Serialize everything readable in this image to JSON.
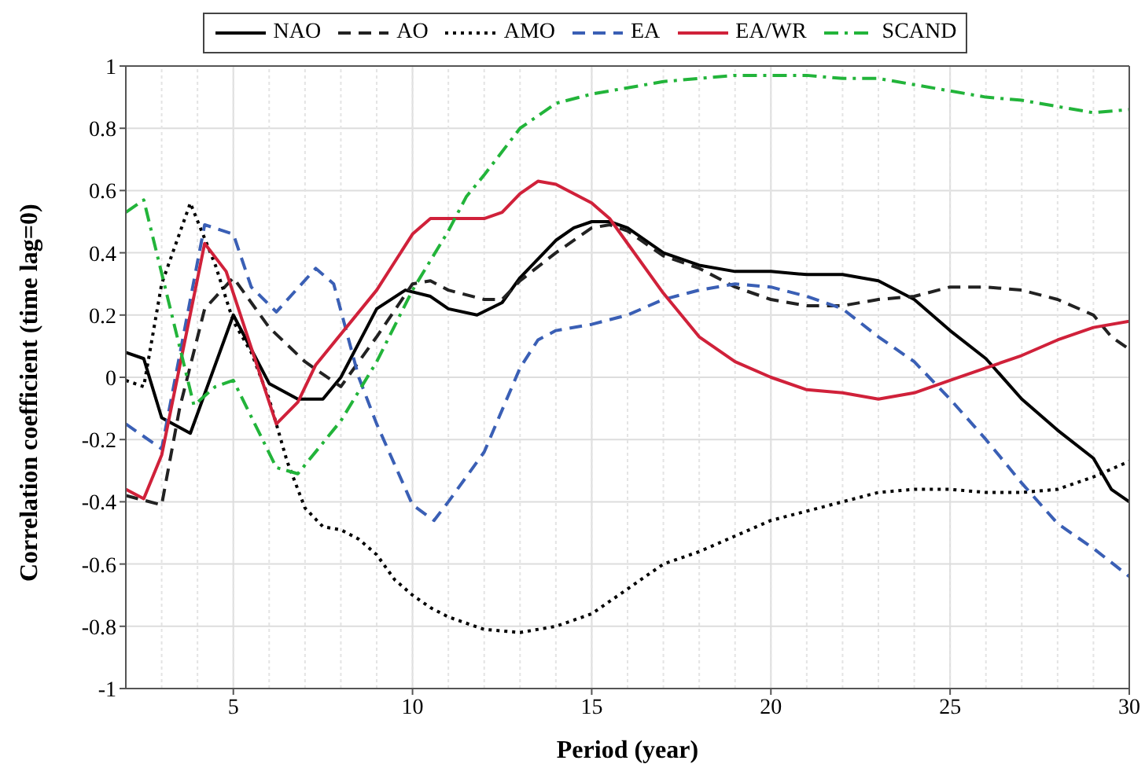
{
  "chart_data": {
    "type": "line",
    "xlabel": "Period (year)",
    "ylabel": "Correlation coefficient (time lag=0)",
    "xlim": [
      2,
      30
    ],
    "xticks": [
      5,
      10,
      15,
      20,
      25,
      30
    ],
    "ylim": [
      -1,
      1
    ],
    "yticks": [
      -1,
      -0.8,
      -0.6,
      -0.4,
      -0.2,
      0,
      0.2,
      0.4,
      0.6,
      0.8,
      1
    ],
    "grid": true,
    "legend": "top",
    "series": [
      {
        "name": "NAO",
        "color": "#000000",
        "line_style": "solid",
        "x": [
          2,
          2.5,
          3,
          3.8,
          5,
          6,
          6.8,
          7.5,
          8,
          9,
          9.8,
          10.5,
          11,
          11.8,
          12.5,
          13,
          14,
          14.5,
          15,
          15.5,
          16,
          17,
          18,
          19,
          20,
          21,
          22,
          23,
          24,
          25,
          26,
          27,
          28,
          29,
          29.5,
          30
        ],
        "values": [
          0.08,
          0.06,
          -0.13,
          -0.18,
          0.2,
          -0.02,
          -0.07,
          -0.07,
          0,
          0.22,
          0.28,
          0.26,
          0.22,
          0.2,
          0.24,
          0.32,
          0.44,
          0.48,
          0.5,
          0.5,
          0.48,
          0.4,
          0.36,
          0.34,
          0.34,
          0.33,
          0.33,
          0.31,
          0.25,
          0.15,
          0.06,
          -0.07,
          -0.17,
          -0.26,
          -0.36,
          -0.4
        ]
      },
      {
        "name": "AO",
        "color": "#222222",
        "line_style": "dashed",
        "x": [
          2,
          3,
          3.5,
          4.2,
          5,
          6,
          7,
          8,
          9,
          10,
          10.5,
          11,
          12,
          12.5,
          13,
          14,
          15,
          15.5,
          16,
          17,
          18,
          19,
          20,
          21,
          22,
          23,
          24,
          25,
          26,
          27,
          28,
          29,
          29.5,
          30
        ],
        "values": [
          -0.38,
          -0.41,
          -0.1,
          0.22,
          0.32,
          0.16,
          0.05,
          -0.03,
          0.13,
          0.3,
          0.31,
          0.28,
          0.25,
          0.25,
          0.31,
          0.4,
          0.48,
          0.49,
          0.47,
          0.39,
          0.35,
          0.29,
          0.25,
          0.23,
          0.23,
          0.25,
          0.26,
          0.29,
          0.29,
          0.28,
          0.25,
          0.2,
          0.13,
          0.09
        ]
      },
      {
        "name": "AMO",
        "color": "#000000",
        "line_style": "dotted",
        "x": [
          2,
          2.5,
          3,
          3.8,
          4.5,
          5,
          5.5,
          6,
          6.5,
          7,
          7.5,
          8,
          8.5,
          9,
          9.5,
          10,
          10.5,
          11,
          12,
          13,
          14,
          15,
          16,
          17,
          18,
          19,
          20,
          21,
          22,
          23,
          24,
          25,
          26,
          27,
          28,
          29,
          30
        ],
        "values": [
          -0.01,
          -0.03,
          0.3,
          0.56,
          0.36,
          0.18,
          0.08,
          -0.07,
          -0.27,
          -0.42,
          -0.48,
          -0.49,
          -0.52,
          -0.57,
          -0.65,
          -0.7,
          -0.74,
          -0.77,
          -0.81,
          -0.82,
          -0.8,
          -0.76,
          -0.68,
          -0.6,
          -0.56,
          -0.51,
          -0.46,
          -0.43,
          -0.4,
          -0.37,
          -0.36,
          -0.36,
          -0.37,
          -0.37,
          -0.36,
          -0.32,
          -0.27
        ]
      },
      {
        "name": "EA",
        "color": "#3a5fb5",
        "line_style": "dashed",
        "x": [
          2,
          3,
          4.2,
          5,
          5.5,
          6.2,
          7.3,
          7.8,
          8.5,
          9,
          10,
          10.6,
          11,
          12,
          13,
          13.5,
          14,
          15,
          16,
          17,
          18,
          19,
          20,
          21,
          22,
          23,
          24,
          25,
          26,
          27,
          28,
          29,
          30
        ],
        "values": [
          -0.15,
          -0.23,
          0.49,
          0.46,
          0.29,
          0.21,
          0.35,
          0.3,
          0,
          -0.15,
          -0.41,
          -0.46,
          -0.4,
          -0.24,
          0.03,
          0.12,
          0.15,
          0.17,
          0.2,
          0.25,
          0.28,
          0.3,
          0.29,
          0.26,
          0.22,
          0.13,
          0.05,
          -0.07,
          -0.2,
          -0.34,
          -0.47,
          -0.55,
          -0.64
        ]
      },
      {
        "name": "EA/WR",
        "color": "#d0213a",
        "line_style": "solid",
        "x": [
          2,
          2.5,
          3,
          4.2,
          4.8,
          6.2,
          6.8,
          7.3,
          9,
          10,
          10.5,
          11,
          12,
          12.5,
          13,
          13.5,
          14,
          15,
          15.5,
          16,
          17,
          18,
          19,
          20,
          21,
          22,
          23,
          24,
          25,
          26,
          27,
          28,
          29,
          30
        ],
        "values": [
          -0.36,
          -0.39,
          -0.25,
          0.43,
          0.34,
          -0.15,
          -0.08,
          0.04,
          0.28,
          0.46,
          0.51,
          0.51,
          0.51,
          0.53,
          0.59,
          0.63,
          0.62,
          0.56,
          0.51,
          0.43,
          0.27,
          0.13,
          0.05,
          0,
          -0.04,
          -0.05,
          -0.07,
          -0.05,
          -0.01,
          0.03,
          0.07,
          0.12,
          0.16,
          0.18
        ]
      },
      {
        "name": "SCAND",
        "color": "#22b43a",
        "line_style": "dashdot",
        "x": [
          2,
          2.5,
          3.9,
          4.5,
          5,
          6.2,
          6.8,
          8,
          9,
          10,
          11,
          11.5,
          12,
          13,
          14,
          15,
          16,
          17,
          18,
          19,
          20,
          21,
          22,
          23,
          24,
          25,
          26,
          27,
          28,
          29,
          30
        ],
        "values": [
          0.53,
          0.57,
          -0.09,
          -0.03,
          -0.01,
          -0.29,
          -0.31,
          -0.14,
          0.05,
          0.28,
          0.47,
          0.58,
          0.65,
          0.8,
          0.88,
          0.91,
          0.93,
          0.95,
          0.96,
          0.97,
          0.97,
          0.97,
          0.96,
          0.96,
          0.94,
          0.92,
          0.9,
          0.89,
          0.87,
          0.85,
          0.86
        ]
      }
    ]
  }
}
